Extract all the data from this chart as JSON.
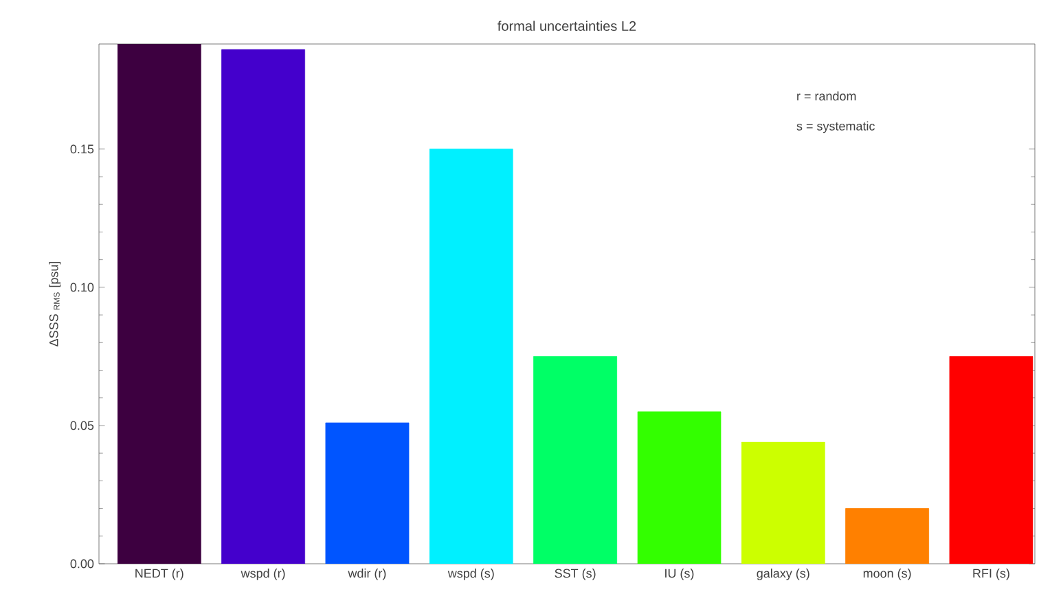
{
  "chart_data": {
    "type": "bar",
    "title": "formal uncertainties L2",
    "ylabel": "ΔSSS $_{RMS}$ [psu]",
    "categories": [
      "NEDT (r)",
      "wspd (r)",
      "wdir (r)",
      "wspd (s)",
      "SST (s)",
      "IU (s)",
      "galaxy (s)",
      "moon (s)",
      "RFI (s)"
    ],
    "values": [
      0.188,
      0.186,
      0.051,
      0.15,
      0.075,
      0.055,
      0.044,
      0.02,
      0.075
    ],
    "colors": [
      "#3d0040",
      "#4400cc",
      "#0055ff",
      "#00f0ff",
      "#00ff66",
      "#33ff00",
      "#ccff00",
      "#ff8000",
      "#ff0000"
    ],
    "ylim": [
      0,
      0.188
    ],
    "yticks": [
      {
        "value": 0,
        "label": "0.00"
      },
      {
        "value": 0.05,
        "label": "0.05"
      },
      {
        "value": 0.1,
        "label": "0.10"
      },
      {
        "value": 0.15,
        "label": "0.15"
      }
    ],
    "annotations": [
      "r = random",
      "s = systematic"
    ]
  }
}
